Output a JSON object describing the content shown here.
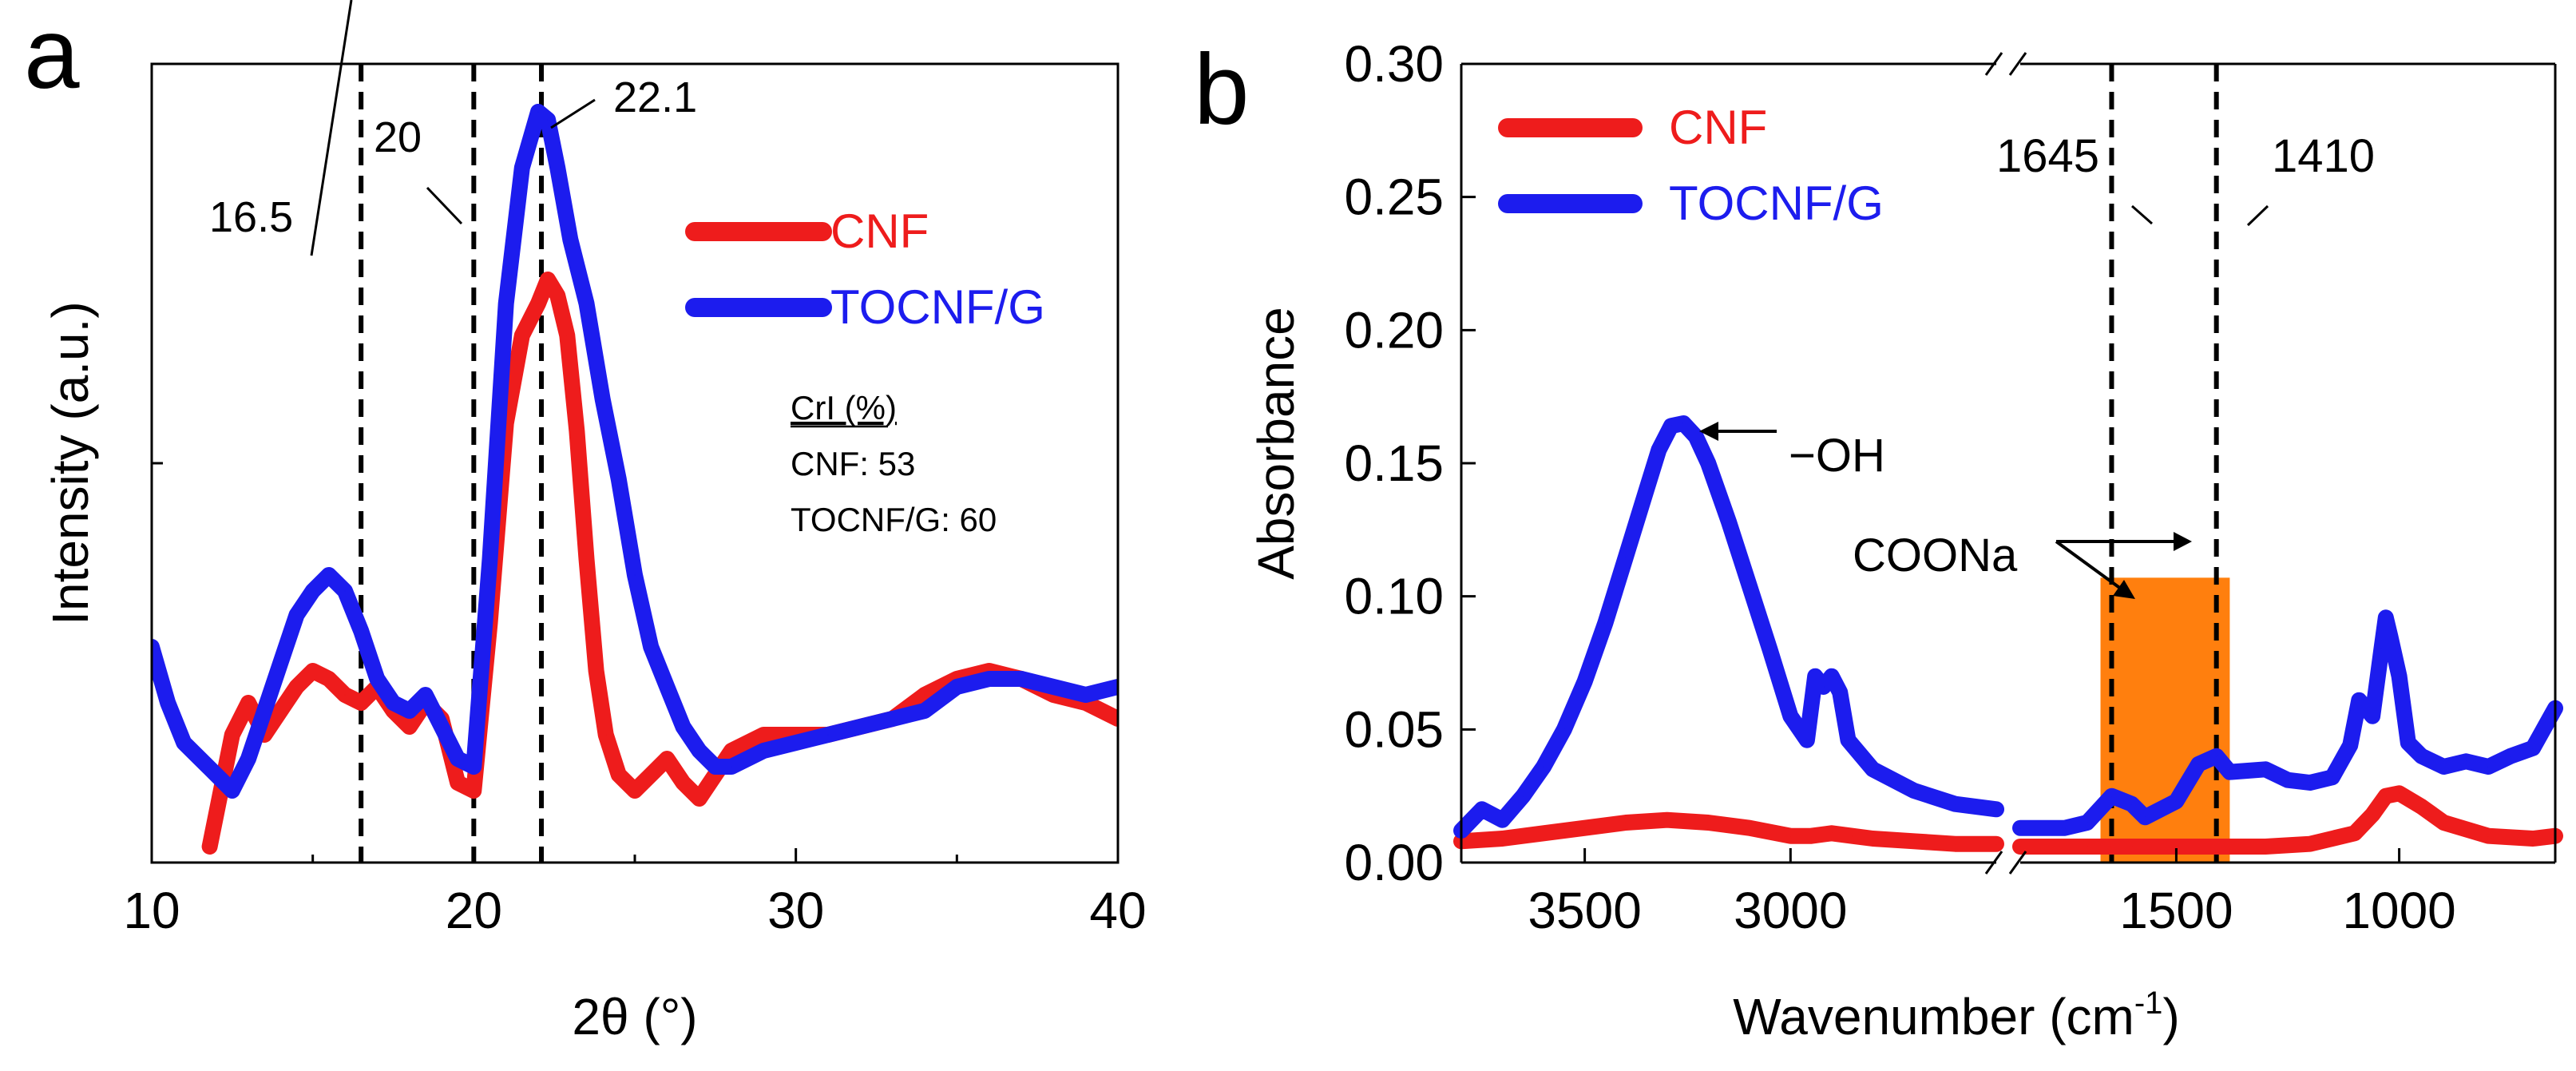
{
  "chart_data": [
    {
      "type": "line",
      "panel_label": "a",
      "xlabel": "2θ (°)",
      "ylabel": "Intensity (a.u.)",
      "xlim": [
        10,
        40
      ],
      "ylim": [
        0,
        100
      ],
      "x_ticks": [
        10,
        20,
        30,
        40
      ],
      "x_tick_labels": [
        "10",
        "20",
        "30",
        "40"
      ],
      "y_tick_labels": [],
      "legend": {
        "position": "top-right"
      },
      "series": [
        {
          "name": "CNF",
          "color": "#ee1c1c",
          "x": [
            11.8,
            12.5,
            13.0,
            13.5,
            14.0,
            14.5,
            15.0,
            15.5,
            16.0,
            16.5,
            17.0,
            17.5,
            18.0,
            18.5,
            19.0,
            19.5,
            20.0,
            20.5,
            21.0,
            21.5,
            22.0,
            22.3,
            22.6,
            22.9,
            23.2,
            23.5,
            23.8,
            24.1,
            24.5,
            25.0,
            25.5,
            26.0,
            26.5,
            27.0,
            27.5,
            28.0,
            29.0,
            30.0,
            31.0,
            32.0,
            33.0,
            34.0,
            35.0,
            36.0,
            37.0,
            38.0,
            39.0,
            40.0
          ],
          "y": [
            2,
            16,
            20,
            16,
            19,
            22,
            24,
            23,
            21,
            20,
            22,
            19,
            17,
            20,
            18,
            10,
            9,
            30,
            55,
            66,
            70,
            73,
            71,
            66,
            54,
            38,
            24,
            16,
            11,
            9,
            11,
            13,
            10,
            8,
            11,
            14,
            16,
            16,
            16,
            17,
            18,
            21,
            23,
            24,
            23,
            21,
            20,
            18
          ]
        },
        {
          "name": "TOCNF/G",
          "color": "#1c1cee",
          "x": [
            10.0,
            10.5,
            11.0,
            11.5,
            12.0,
            12.5,
            13.0,
            13.5,
            14.0,
            14.5,
            15.0,
            15.5,
            16.0,
            16.5,
            17.0,
            17.5,
            18.0,
            18.5,
            19.0,
            19.5,
            20.0,
            20.5,
            21.0,
            21.5,
            22.0,
            22.3,
            22.6,
            23.0,
            23.5,
            24.0,
            24.5,
            25.0,
            25.5,
            26.0,
            26.5,
            27.0,
            27.5,
            28.0,
            29.0,
            30.0,
            31.0,
            32.0,
            33.0,
            34.0,
            35.0,
            36.0,
            37.0,
            38.0,
            39.0,
            40.0
          ],
          "y": [
            27,
            20,
            15,
            13,
            11,
            9,
            13,
            19,
            25,
            31,
            34,
            36,
            34,
            29,
            23,
            20,
            19,
            21,
            17,
            13,
            12,
            38,
            70,
            87,
            94,
            93,
            87,
            78,
            70,
            58,
            48,
            36,
            27,
            22,
            17,
            14,
            12,
            12,
            14,
            15,
            16,
            17,
            18,
            19,
            22,
            23,
            23,
            22,
            21,
            22
          ]
        }
      ],
      "ref_lines": [
        16.5,
        20,
        22.1
      ],
      "annotations": [
        "16.5",
        "20",
        "22.1"
      ],
      "inset": {
        "title": "CrI (%)",
        "lines": [
          "CNF: 53",
          "TOCNF/G: 60"
        ]
      }
    },
    {
      "type": "line",
      "panel_label": "b",
      "xlabel": "Wavenumber (cm",
      "xlabel_superscript": "-1",
      "xlabel_close": ")",
      "ylabel": "Absorbance",
      "xaxis": "reversed, broken between 2500 and 1850 cm-1",
      "x_segments": [
        [
          3800,
          2500
        ],
        [
          1850,
          650
        ]
      ],
      "ylim": [
        0,
        0.3
      ],
      "x_ticks": [
        3500,
        3000,
        1500,
        1000
      ],
      "x_tick_labels": [
        "3500",
        "3000",
        "1500",
        "1000"
      ],
      "y_ticks": [
        0,
        0.05,
        0.1,
        0.15,
        0.2,
        0.25,
        0.3
      ],
      "y_tick_labels": [
        "0.00",
        "0.05",
        "0.10",
        "0.15",
        "0.20",
        "0.25",
        "0.30"
      ],
      "legend": {
        "position": "top-left"
      },
      "series": [
        {
          "name": "CNF",
          "color": "#ee1c1c",
          "x": [
            3800,
            3700,
            3600,
            3500,
            3400,
            3300,
            3200,
            3100,
            3000,
            2950,
            2900,
            2850,
            2800,
            2700,
            2600,
            2500,
            1850,
            1750,
            1700,
            1645,
            1600,
            1500,
            1410,
            1300,
            1200,
            1100,
            1060,
            1030,
            1000,
            950,
            900,
            800,
            700,
            650
          ],
          "y": [
            0.008,
            0.009,
            0.011,
            0.013,
            0.015,
            0.016,
            0.015,
            0.013,
            0.01,
            0.01,
            0.011,
            0.01,
            0.009,
            0.008,
            0.007,
            0.007,
            0.006,
            0.006,
            0.006,
            0.006,
            0.006,
            0.006,
            0.006,
            0.006,
            0.007,
            0.011,
            0.018,
            0.025,
            0.026,
            0.021,
            0.015,
            0.01,
            0.009,
            0.01
          ]
        },
        {
          "name": "TOCNF/G",
          "color": "#1c1cee",
          "x": [
            3800,
            3750,
            3700,
            3650,
            3600,
            3550,
            3500,
            3450,
            3400,
            3350,
            3320,
            3290,
            3260,
            3230,
            3200,
            3150,
            3100,
            3050,
            3000,
            2960,
            2940,
            2920,
            2900,
            2880,
            2860,
            2800,
            2700,
            2600,
            2500,
            1850,
            1750,
            1700,
            1645,
            1600,
            1570,
            1500,
            1450,
            1410,
            1380,
            1300,
            1250,
            1200,
            1150,
            1110,
            1090,
            1060,
            1040,
            1030,
            1020,
            1000,
            980,
            950,
            900,
            850,
            800,
            750,
            700,
            650
          ],
          "y": [
            0.012,
            0.02,
            0.016,
            0.025,
            0.036,
            0.05,
            0.068,
            0.09,
            0.115,
            0.14,
            0.155,
            0.164,
            0.165,
            0.16,
            0.15,
            0.128,
            0.104,
            0.08,
            0.055,
            0.046,
            0.07,
            0.066,
            0.07,
            0.064,
            0.046,
            0.035,
            0.027,
            0.022,
            0.02,
            0.013,
            0.013,
            0.015,
            0.025,
            0.022,
            0.017,
            0.023,
            0.037,
            0.04,
            0.034,
            0.035,
            0.031,
            0.03,
            0.032,
            0.044,
            0.061,
            0.055,
            0.08,
            0.092,
            0.085,
            0.07,
            0.045,
            0.04,
            0.036,
            0.038,
            0.036,
            0.04,
            0.043,
            0.058
          ]
        }
      ],
      "ref_lines": [
        1645,
        1410
      ],
      "annotations": [
        "1645",
        "1410",
        "−OH",
        "COONa"
      ],
      "highlight": {
        "x_range": [
          1670,
          1380
        ],
        "y_max": 0.107,
        "color": "#ff7f0e"
      }
    }
  ]
}
